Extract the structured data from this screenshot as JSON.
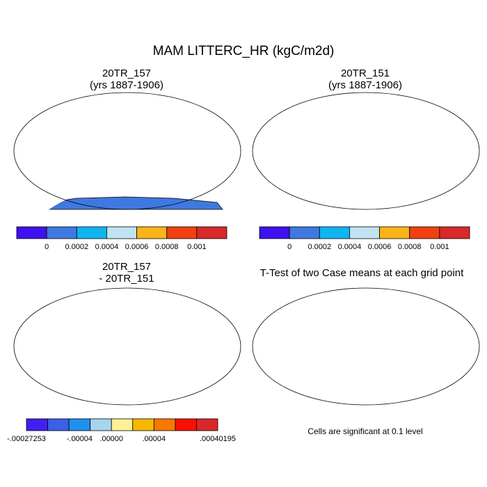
{
  "title": "MAM LITTERC_HR (kgC/m2d)",
  "panels": [
    {
      "id": "p1",
      "title_line1": "20TR_157",
      "title_line2": "(yrs 1887-1906)"
    },
    {
      "id": "p2",
      "title_line1": "20TR_151",
      "title_line2": "(yrs 1887-1906)"
    },
    {
      "id": "p3",
      "title_line1": "20TR_157",
      "title_line2": "- 20TR_151"
    },
    {
      "id": "p4",
      "title_line1": "T-Test of two Case means at each grid point",
      "title_line2": ""
    }
  ],
  "colorbar_top": {
    "colors": [
      "#3e10f0",
      "#3f78e0",
      "#10b4f0",
      "#c0e4f0",
      "#f8b418",
      "#f04010",
      "#d82828"
    ],
    "labels": [
      "0",
      "0.0002",
      "0.0004",
      "0.0006",
      "0.0008",
      "0.001"
    ]
  },
  "colorbar_diff": {
    "colors": [
      "#4020f0",
      "#3a60e8",
      "#2090f0",
      "#a8d4f0",
      "#fff098",
      "#f8b800",
      "#f87800",
      "#f81000",
      "#d82828"
    ],
    "labels": [
      "-.00027253",
      "-.00004",
      ".00000",
      ".00004",
      ".00040195"
    ]
  },
  "significance_note": "Cells are significant at 0.1 level",
  "map_colors": {
    "ocean": "#ffffff",
    "top_land": "#3f78e0",
    "tropics": "#d82828",
    "diff_land": "#fff098",
    "signif": "#e00000"
  }
}
